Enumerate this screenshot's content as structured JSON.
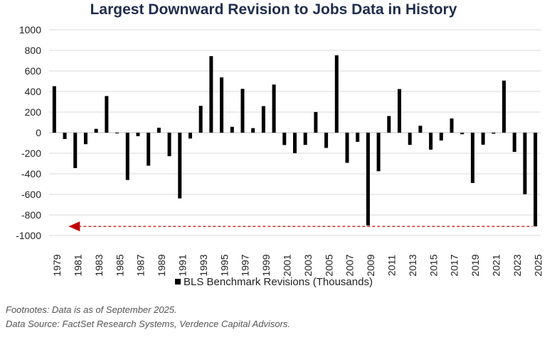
{
  "chart_data": {
    "type": "bar",
    "title": "Largest Downward Revision to Jobs Data in History",
    "series": [
      {
        "name": "BLS Benchmark Revisions (Thousands)",
        "color": "#000000",
        "x": [
          1979,
          1980,
          1981,
          1982,
          1983,
          1984,
          1985,
          1986,
          1987,
          1988,
          1989,
          1990,
          1991,
          1992,
          1993,
          1994,
          1995,
          1996,
          1997,
          1998,
          1999,
          2000,
          2001,
          2002,
          2003,
          2004,
          2005,
          2006,
          2007,
          2008,
          2009,
          2010,
          2011,
          2012,
          2013,
          2014,
          2015,
          2016,
          2017,
          2018,
          2019,
          2020,
          2021,
          2022,
          2023,
          2024,
          2025
        ],
        "values": [
          452,
          -62,
          -344,
          -112,
          37,
          356,
          -6,
          -460,
          -34,
          -321,
          48,
          -229,
          -639,
          -57,
          261,
          744,
          537,
          57,
          426,
          44,
          258,
          468,
          -120,
          -199,
          -119,
          201,
          -148,
          752,
          -293,
          -89,
          -902,
          -375,
          162,
          424,
          -119,
          67,
          -165,
          -76,
          138,
          -15,
          -489,
          -117,
          -10,
          506,
          -187,
          -598,
          -911
        ]
      }
    ],
    "x_tick_labels": [
      "1979",
      "1981",
      "1983",
      "1985",
      "1987",
      "1989",
      "1991",
      "1993",
      "1995",
      "1997",
      "1999",
      "2001",
      "2003",
      "2005",
      "2007",
      "2009",
      "2011",
      "2013",
      "2015",
      "2017",
      "2019",
      "2021",
      "2023",
      "2025"
    ],
    "y_tick_labels": [
      "1000",
      "800",
      "600",
      "400",
      "200",
      "0",
      "-200",
      "-400",
      "-600",
      "-800",
      "-1000"
    ],
    "ylim": [
      -1000,
      1000
    ],
    "ytick_step": 200,
    "grid": true,
    "legend_position": "bottom",
    "annotation": {
      "type": "dashed-arrow",
      "value": -911,
      "from_year": 2025,
      "to_year": 1979,
      "color": "#c00000"
    }
  },
  "footnotes": {
    "line1": "Footnotes: Data is as of September 2025.",
    "line2": "Data Source: FactSet Research Systems, Verdence Capital Advisors."
  }
}
